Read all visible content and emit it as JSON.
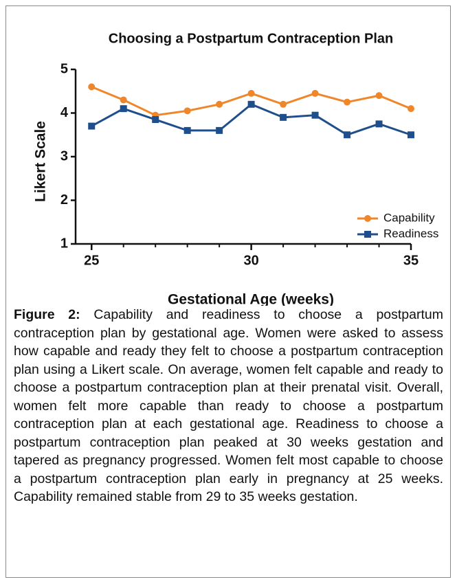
{
  "chart_data": {
    "type": "line",
    "title": "Choosing a Postpartum Contraception Plan",
    "x_label": "Gestational Age (weeks)",
    "y_label": "Likert Scale",
    "x": [
      25,
      26,
      27,
      28,
      29,
      30,
      31,
      32,
      33,
      34,
      35
    ],
    "series": [
      {
        "name": "Capability",
        "color": "#f0862a",
        "marker": "circle",
        "values": [
          4.6,
          4.3,
          3.95,
          4.05,
          4.2,
          4.45,
          4.2,
          4.45,
          4.25,
          4.4,
          4.1
        ]
      },
      {
        "name": "Readiness",
        "color": "#1f4e8c",
        "marker": "square",
        "values": [
          3.7,
          4.1,
          3.85,
          3.6,
          3.6,
          4.2,
          3.9,
          3.95,
          3.5,
          3.75,
          3.5
        ]
      }
    ],
    "xlim": [
      24.5,
      35
    ],
    "xticks": [
      25,
      30,
      35
    ],
    "xminorticks": [
      26,
      27,
      28,
      29,
      31,
      32,
      33,
      34
    ],
    "ylim": [
      1,
      5
    ],
    "yticks": [
      1,
      2,
      3,
      4,
      5
    ],
    "legend": "lower right"
  },
  "caption": {
    "label": "Figure 2:",
    "text": "Capability and readiness to choose a postpartum contraception plan by gestational age. Women were asked to assess how capable and ready they felt to choose a postpartum contraception plan using a Likert scale. On average, women felt capable and ready to choose a postpartum contraception plan at their prenatal visit. Overall, women felt more capable than ready to choose a postpartum contraception plan at each gestational age. Readiness to choose a postpartum contraception plan peaked at 30 weeks gestation and tapered as pregnancy progressed. Women felt most capable to choose a postpartum contraception plan early in pregnancy at 25 weeks. Capability remained stable from 29 to 35 weeks gestation."
  }
}
